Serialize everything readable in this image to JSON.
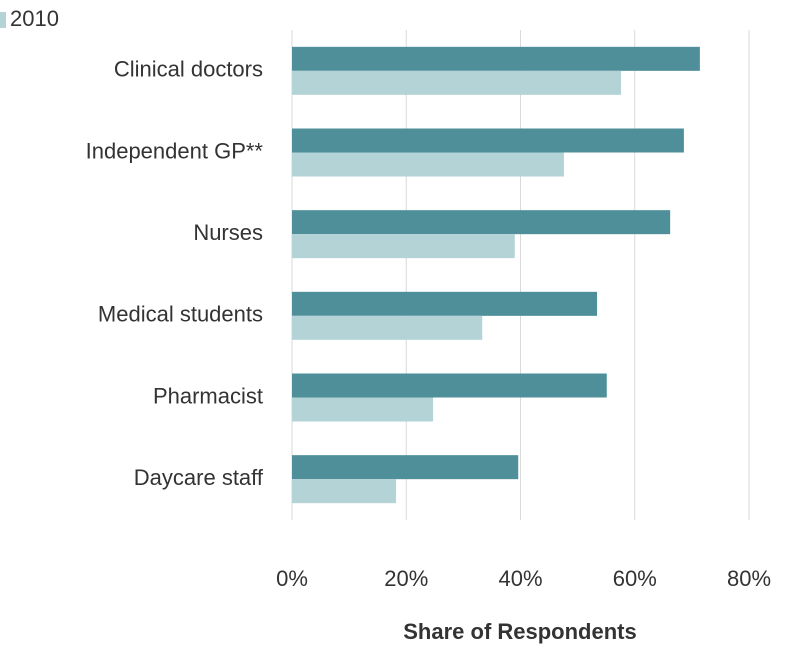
{
  "chart_data": {
    "type": "bar",
    "orientation": "horizontal",
    "categories": [
      "Clinical doctors",
      "Independent GP**",
      "Nurses",
      "Medical students",
      "Pharmacist",
      "Daycare staff"
    ],
    "series": [
      {
        "color": "#4e8f99",
        "values": [
          71.4,
          68.6,
          66.2,
          53.4,
          55.1,
          39.6
        ]
      },
      {
        "name": "2010",
        "color": "#b3d3d7",
        "values": [
          57.6,
          47.6,
          39.0,
          33.3,
          24.7,
          18.2
        ]
      }
    ],
    "xlim": [
      0,
      80
    ],
    "xticks": [
      {
        "value": 0,
        "label": "0%"
      },
      {
        "value": 20,
        "label": "20%"
      },
      {
        "value": 40,
        "label": "40%"
      },
      {
        "value": 60,
        "label": "60%"
      },
      {
        "value": 80,
        "label": "80%"
      }
    ],
    "xlabel": "Share of Respondents",
    "grid": true
  }
}
